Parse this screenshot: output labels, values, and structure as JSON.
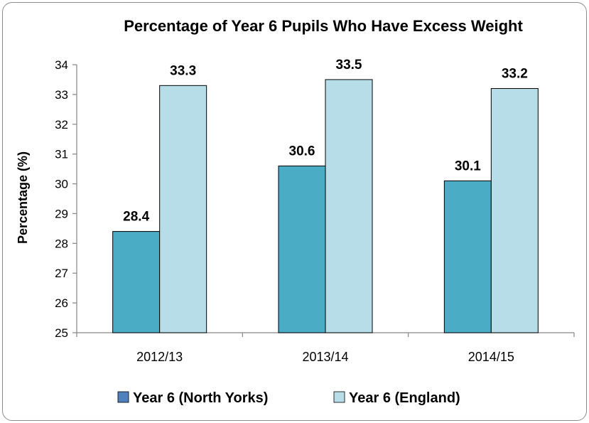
{
  "chart_data": {
    "type": "bar",
    "title": "Percentage of Year 6 Pupils Who Have Excess Weight",
    "xlabel": "",
    "ylabel": "Percentage (%)",
    "categories": [
      "2012/13",
      "2013/14",
      "2014/15"
    ],
    "ylim": [
      25,
      34
    ],
    "yticks": [
      25,
      26,
      27,
      28,
      29,
      30,
      31,
      32,
      33,
      34
    ],
    "grid": false,
    "legend_position": "bottom",
    "series": [
      {
        "name": "Year 6 (North Yorks)",
        "values": [
          28.4,
          30.6,
          30.1
        ],
        "color": "#4bacc6"
      },
      {
        "name": "Year 6 (England)",
        "values": [
          33.3,
          33.5,
          33.2
        ],
        "color": "#b7dee8"
      }
    ],
    "data_labels": true
  },
  "legend_marker_color": "#4f81bd"
}
